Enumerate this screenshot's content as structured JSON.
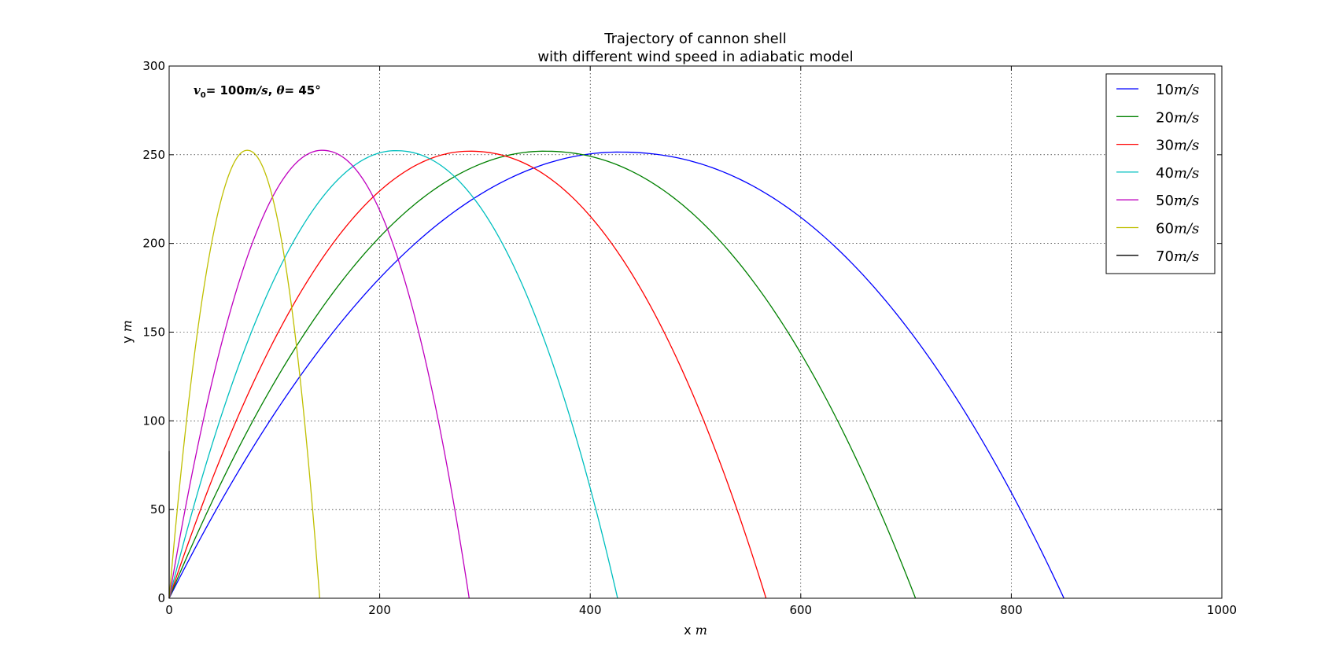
{
  "chart_data": {
    "type": "line",
    "title_line1": "Trajectory of cannon shell",
    "title_line2": "with different wind speed in adiabatic model",
    "xlabel": "x",
    "xlabel_unit": "m",
    "ylabel": "y",
    "ylabel_unit": "m",
    "xlim": [
      0,
      1000
    ],
    "ylim": [
      0,
      300
    ],
    "xticks": [
      0,
      200,
      400,
      600,
      800,
      1000
    ],
    "yticks": [
      0,
      50,
      100,
      150,
      200,
      250,
      300
    ],
    "grid": true,
    "legend_position": "top-right",
    "annotation": {
      "v0_symbol": "v",
      "v0_sub": "0",
      "v0_text": "= 100",
      "v0_unit": "m/s",
      "sep": ", ",
      "theta_symbol": "θ",
      "theta_text": "= 45°"
    },
    "series": [
      {
        "name": "10",
        "unit": "m/s",
        "color": "#0000ff",
        "x_range": 850,
        "x_peak": 427,
        "y_peak": 251.5,
        "y_end": 0
      },
      {
        "name": "20",
        "unit": "m/s",
        "color": "#008000",
        "x_range": 709,
        "x_peak": 356,
        "y_peak": 252,
        "y_end": 0
      },
      {
        "name": "30",
        "unit": "m/s",
        "color": "#ff0000",
        "x_range": 567,
        "x_peak": 285,
        "y_peak": 252,
        "y_end": 0
      },
      {
        "name": "40",
        "unit": "m/s",
        "color": "#00bfbf",
        "x_range": 426,
        "x_peak": 215,
        "y_peak": 252.3,
        "y_end": 0
      },
      {
        "name": "50",
        "unit": "m/s",
        "color": "#bf00bf",
        "x_range": 285,
        "x_peak": 145,
        "y_peak": 252.5,
        "y_end": 0
      },
      {
        "name": "60",
        "unit": "m/s",
        "color": "#bfbf00",
        "x_range": 143,
        "x_peak": 74,
        "y_peak": 252.5,
        "y_end": 0
      },
      {
        "name": "70",
        "unit": "m/s",
        "color": "#000000",
        "x_range": 0.5,
        "x_peak": 0.3,
        "y_peak": 83,
        "y_end": 0
      }
    ]
  }
}
